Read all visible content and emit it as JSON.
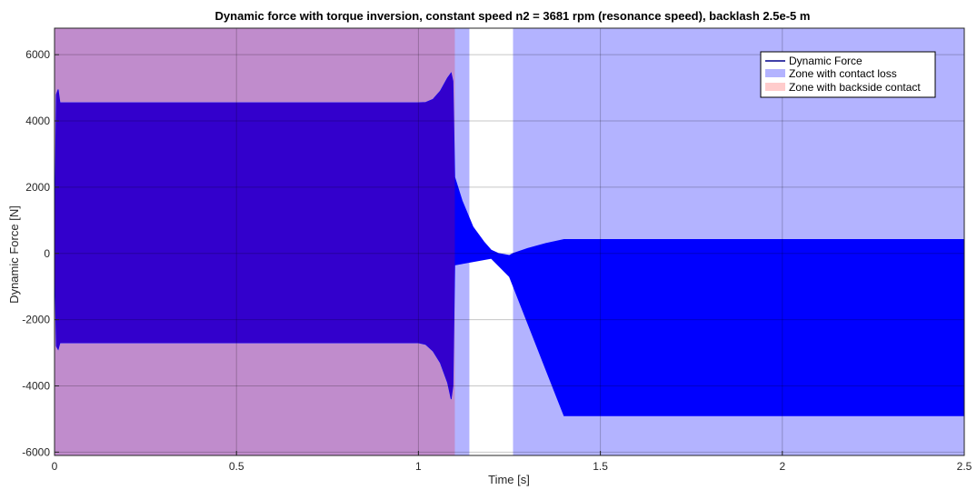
{
  "chart_data": {
    "type": "area",
    "title": "Dynamic force with torque inversion, constant speed n2 = 3681 rpm (resonance speed), backlash 2.5e-5 m",
    "xlabel": "Time [s]",
    "ylabel": "Dynamic Force [N]",
    "xlim": [
      0,
      2.5
    ],
    "ylim": [
      -6100,
      6800
    ],
    "xticks": [
      0,
      0.5,
      1,
      1.5,
      2,
      2.5
    ],
    "xtick_labels": [
      "0",
      "0.5",
      "1",
      "1.5",
      "2",
      "2.5"
    ],
    "yticks": [
      -6000,
      -4000,
      -2000,
      0,
      2000,
      4000,
      6000
    ],
    "ytick_labels": [
      "-6000",
      "-4000",
      "-2000",
      "0",
      "2000",
      "4000",
      "6000"
    ],
    "grid": true,
    "legend_position": "top-right",
    "series": [
      {
        "name": "Dynamic Force",
        "kind": "oscillation-envelope",
        "color": "#0000ff",
        "upper": [
          [
            0,
            0
          ],
          [
            0.005,
            4800
          ],
          [
            0.01,
            4950
          ],
          [
            0.015,
            4550
          ],
          [
            0.5,
            4550
          ],
          [
            1.0,
            4550
          ],
          [
            1.02,
            4560
          ],
          [
            1.04,
            4650
          ],
          [
            1.06,
            4900
          ],
          [
            1.08,
            5300
          ],
          [
            1.09,
            5450
          ],
          [
            1.095,
            5200
          ],
          [
            1.1,
            2300
          ],
          [
            1.12,
            1600
          ],
          [
            1.15,
            800
          ],
          [
            1.18,
            350
          ],
          [
            1.2,
            100
          ],
          [
            1.22,
            0
          ],
          [
            1.25,
            -60
          ],
          [
            1.26,
            0
          ],
          [
            1.3,
            150
          ],
          [
            1.35,
            300
          ],
          [
            1.4,
            420
          ],
          [
            2.5,
            420
          ]
        ],
        "lower": [
          [
            0,
            0
          ],
          [
            0.005,
            -2800
          ],
          [
            0.01,
            -2900
          ],
          [
            0.015,
            -2700
          ],
          [
            0.5,
            -2700
          ],
          [
            1.0,
            -2700
          ],
          [
            1.02,
            -2750
          ],
          [
            1.04,
            -2950
          ],
          [
            1.06,
            -3300
          ],
          [
            1.08,
            -3900
          ],
          [
            1.09,
            -4400
          ],
          [
            1.095,
            -4000
          ],
          [
            1.1,
            -350
          ],
          [
            1.15,
            -250
          ],
          [
            1.2,
            -150
          ],
          [
            1.25,
            -700
          ],
          [
            1.3,
            -2100
          ],
          [
            1.35,
            -3500
          ],
          [
            1.4,
            -4900
          ],
          [
            2.5,
            -4900
          ]
        ]
      },
      {
        "name": "Zone with contact loss",
        "kind": "shaded-span",
        "color": "#b3b3ff",
        "spans": [
          [
            0,
            1.14
          ],
          [
            1.26,
            2.5
          ]
        ]
      },
      {
        "name": "Zone with backside contact",
        "kind": "shaded-span",
        "color": "#ffcccc",
        "spans": [
          [
            0,
            1.1
          ]
        ]
      }
    ]
  },
  "colors": {
    "overlap_zone": "#c08ccc",
    "force_overlap": "#3300cc",
    "force_line": "#0000ff",
    "grid": "#000000",
    "background": "#ffffff",
    "legend_force_line": "#00008b"
  }
}
